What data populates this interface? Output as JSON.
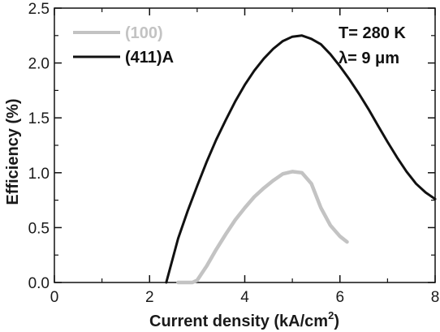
{
  "chart_data": {
    "type": "line",
    "title": "",
    "xlabel": "Current density (kA/cm",
    "xlabel_sup": "2",
    "xlabel_close": ")",
    "ylabel": "Efficiency (%)",
    "xlim": [
      0,
      8
    ],
    "ylim": [
      0,
      2.5
    ],
    "x_ticks": [
      0,
      2,
      4,
      6,
      8
    ],
    "x_tick_labels": [
      "0",
      "2",
      "4",
      "6",
      "8"
    ],
    "x_minor_ticks": [
      1,
      3,
      5,
      7
    ],
    "y_ticks": [
      0,
      0.5,
      1.0,
      1.5,
      2.0,
      2.5
    ],
    "y_tick_labels": [
      "0.0",
      "0.5",
      "1.0",
      "1.5",
      "2.0",
      "2.5"
    ],
    "y_minor_ticks": [
      0.25,
      0.75,
      1.25,
      1.75,
      2.25
    ],
    "grid": false,
    "legend_position": "top-left",
    "annotations": [
      "T= 280 K",
      "λ= 9 μm"
    ],
    "series": [
      {
        "name": "(100)",
        "color": "#c3c3c3",
        "x": [
          2.6,
          2.9,
          3.0,
          3.2,
          3.4,
          3.6,
          3.8,
          4.0,
          4.2,
          4.4,
          4.6,
          4.8,
          5.0,
          5.2,
          5.4,
          5.6,
          5.8,
          6.0,
          6.15
        ],
        "y": [
          0.0,
          0.0,
          0.02,
          0.15,
          0.3,
          0.44,
          0.57,
          0.68,
          0.78,
          0.86,
          0.93,
          0.99,
          1.01,
          1.0,
          0.9,
          0.68,
          0.52,
          0.42,
          0.37
        ]
      },
      {
        "name": "(411)A",
        "color": "#111111",
        "x": [
          2.35,
          2.6,
          2.8,
          3.0,
          3.2,
          3.4,
          3.6,
          3.8,
          4.0,
          4.2,
          4.4,
          4.6,
          4.8,
          5.0,
          5.2,
          5.4,
          5.6,
          5.8,
          6.0,
          6.2,
          6.4,
          6.6,
          6.8,
          7.0,
          7.2,
          7.4,
          7.6,
          7.8,
          8.0
        ],
        "y": [
          0.0,
          0.4,
          0.65,
          0.88,
          1.1,
          1.3,
          1.48,
          1.65,
          1.8,
          1.93,
          2.04,
          2.13,
          2.2,
          2.24,
          2.25,
          2.22,
          2.17,
          2.08,
          1.97,
          1.85,
          1.72,
          1.58,
          1.43,
          1.28,
          1.14,
          1.01,
          0.9,
          0.82,
          0.76
        ]
      }
    ]
  }
}
